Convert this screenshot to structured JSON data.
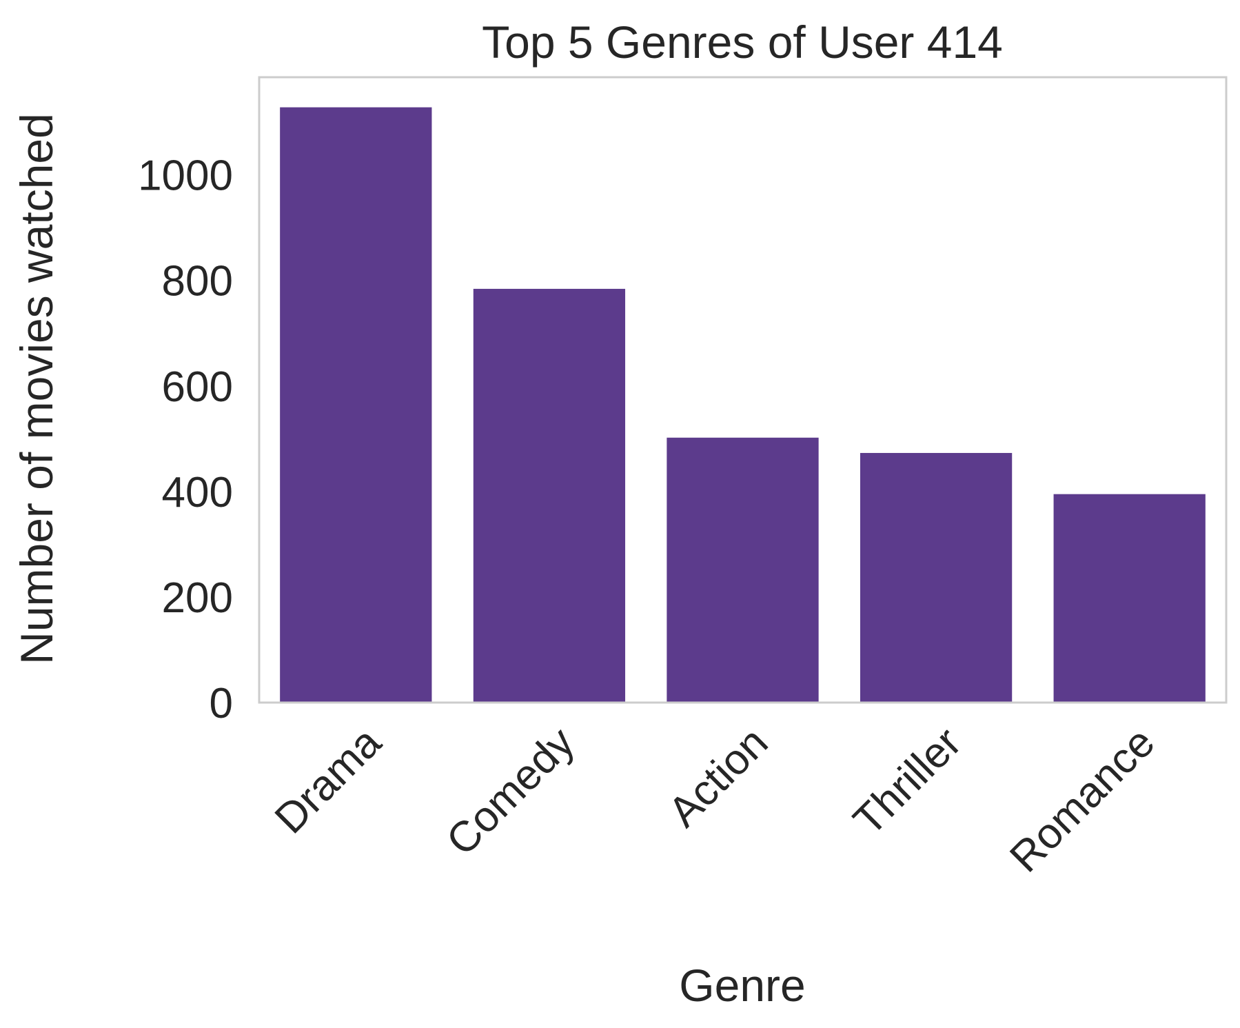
{
  "chart_data": {
    "type": "bar",
    "title": "Top 5 Genres of User 414",
    "xlabel": "Genre",
    "ylabel": "Number of movies watched",
    "categories": [
      "Drama",
      "Comedy",
      "Action",
      "Thriller",
      "Romance"
    ],
    "values": [
      1128,
      784,
      502,
      473,
      395
    ],
    "ylim": [
      0,
      1185
    ],
    "yticks": [
      "0",
      "200",
      "400",
      "600",
      "800",
      "1000"
    ],
    "grid": false,
    "legend": "none",
    "x_tick_rotation": 45,
    "bar_color": "#5c3b8c",
    "frame_color": "#cccccc"
  }
}
